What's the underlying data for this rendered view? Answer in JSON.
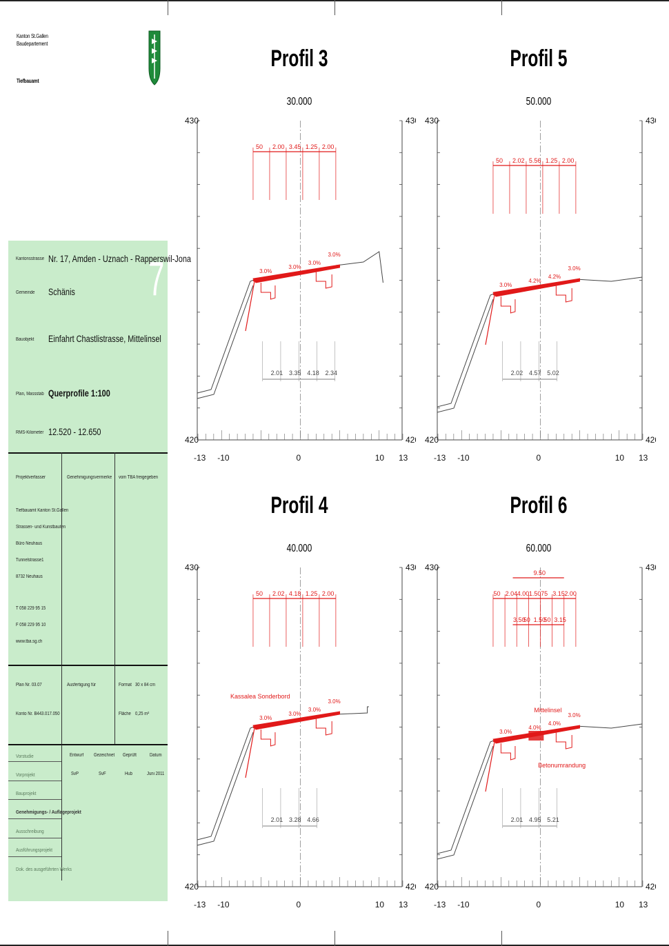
{
  "header": {
    "canton": "Kanton St.Gallen",
    "department": "Baudepartement",
    "office": "Tiefbauamt"
  },
  "titleblock": {
    "number": "7",
    "fields": [
      {
        "label": "Kantonsstrasse",
        "value": "Nr. 17, Amden - Uznach - Rapperswil-Jona"
      },
      {
        "label": "Gemeinde",
        "value": "Schänis"
      },
      {
        "label": "Bauobjekt",
        "value": "Einfahrt Chastlistrasse, Mittelinsel"
      },
      {
        "label": "Plan, Massstab",
        "value": "Querprofile 1:100"
      },
      {
        "label": "RMS-Kilometer",
        "value": "12.520 - 12.650"
      }
    ],
    "author_label": "Projektverfasser",
    "approval_label": "Genehmigungsvermerke",
    "release_label": "vom TBA freigegeben",
    "author_lines": [
      "Tiefbauamt Kanton St.Gallen",
      "Strassen- und Kunstbauten",
      "Büro Neuhaus",
      "Tunnelstrasse1",
      "8732 Neuhaus"
    ],
    "contact_lines": [
      "T 058 229 95 15",
      "F 058 229 95 10",
      "www.tba.sg.ch"
    ],
    "plan_nr": "Plan   Nr. 03.07",
    "konto_nr": "Konto  Nr. B443.017.050",
    "copy_for": "Ausfertigung für",
    "format_label": "Format",
    "format_value": "30  x  84  cm",
    "area_label": "Fläche",
    "area_value": "0,25  m²",
    "stage_headers": [
      "Entwurf",
      "Gezeichnet",
      "Geprüft",
      "Datum"
    ],
    "stages": [
      {
        "name": "Vorstudie",
        "muted": true
      },
      {
        "name": "Vorprojekt",
        "muted": true
      },
      {
        "name": "Bauprojekt",
        "muted": true
      },
      {
        "name": "Genehmigungs- / Auflageprojekt",
        "muted": false
      },
      {
        "name": "Ausschreibung",
        "muted": true
      },
      {
        "name": "Ausführungsprojekt",
        "muted": true
      },
      {
        "name": "Dok. des ausgeführten Werks",
        "muted": true
      }
    ],
    "signoff": [
      "SvP",
      "SvF",
      "Hub",
      "Juni 2011"
    ]
  },
  "profiles": [
    {
      "title": "Profil 3",
      "station": "30.000",
      "dims": [
        "50",
        "2.00",
        "3.45",
        "1.25",
        "2.00"
      ],
      "offsets": [
        "2.01",
        "3.35",
        "4.18",
        "2.34"
      ],
      "slopes": [
        "3.0%",
        "3.0%",
        "3.0%",
        "3.0%"
      ]
    },
    {
      "title": "Profil 5",
      "station": "50.000",
      "dims": [
        "50",
        "2.02",
        "5.56",
        "1.25",
        "2.00"
      ],
      "offsets": [
        "2.02",
        "4.57",
        "5.02"
      ],
      "slopes": [
        "3.0%",
        "4.2%",
        "4.2%",
        "3.0%"
      ]
    },
    {
      "title": "Profil 4",
      "station": "40.000",
      "dims": [
        "50",
        "2.02",
        "4.18",
        "1.25",
        "2.00"
      ],
      "offsets": [
        "2.01",
        "3.28",
        "4.66"
      ],
      "slopes": [
        "3.0%",
        "3.0%",
        "3.0%",
        "3.0%"
      ],
      "note": "Kassalea Sonderbord"
    },
    {
      "title": "Profil 6",
      "station": "60.000",
      "dims": [
        "50",
        "2.04",
        "4.00",
        "1.50",
        "75",
        "3.15",
        "2.00"
      ],
      "dims2": [
        "3.50",
        "50",
        "1.50",
        "50",
        "3.15"
      ],
      "total": "9.50",
      "offsets": [
        "2.01",
        "4.95",
        "5.21"
      ],
      "slopes": [
        "3.0%",
        "4.0%",
        "4.0%",
        "3.0%"
      ],
      "note": "Mittelinsel",
      "note2": "Betonumrandung"
    }
  ],
  "axis": {
    "elev_top": "430",
    "elev_bottom": "420",
    "x_ticks": [
      "-13",
      "-10",
      "0",
      "10",
      "13"
    ]
  }
}
